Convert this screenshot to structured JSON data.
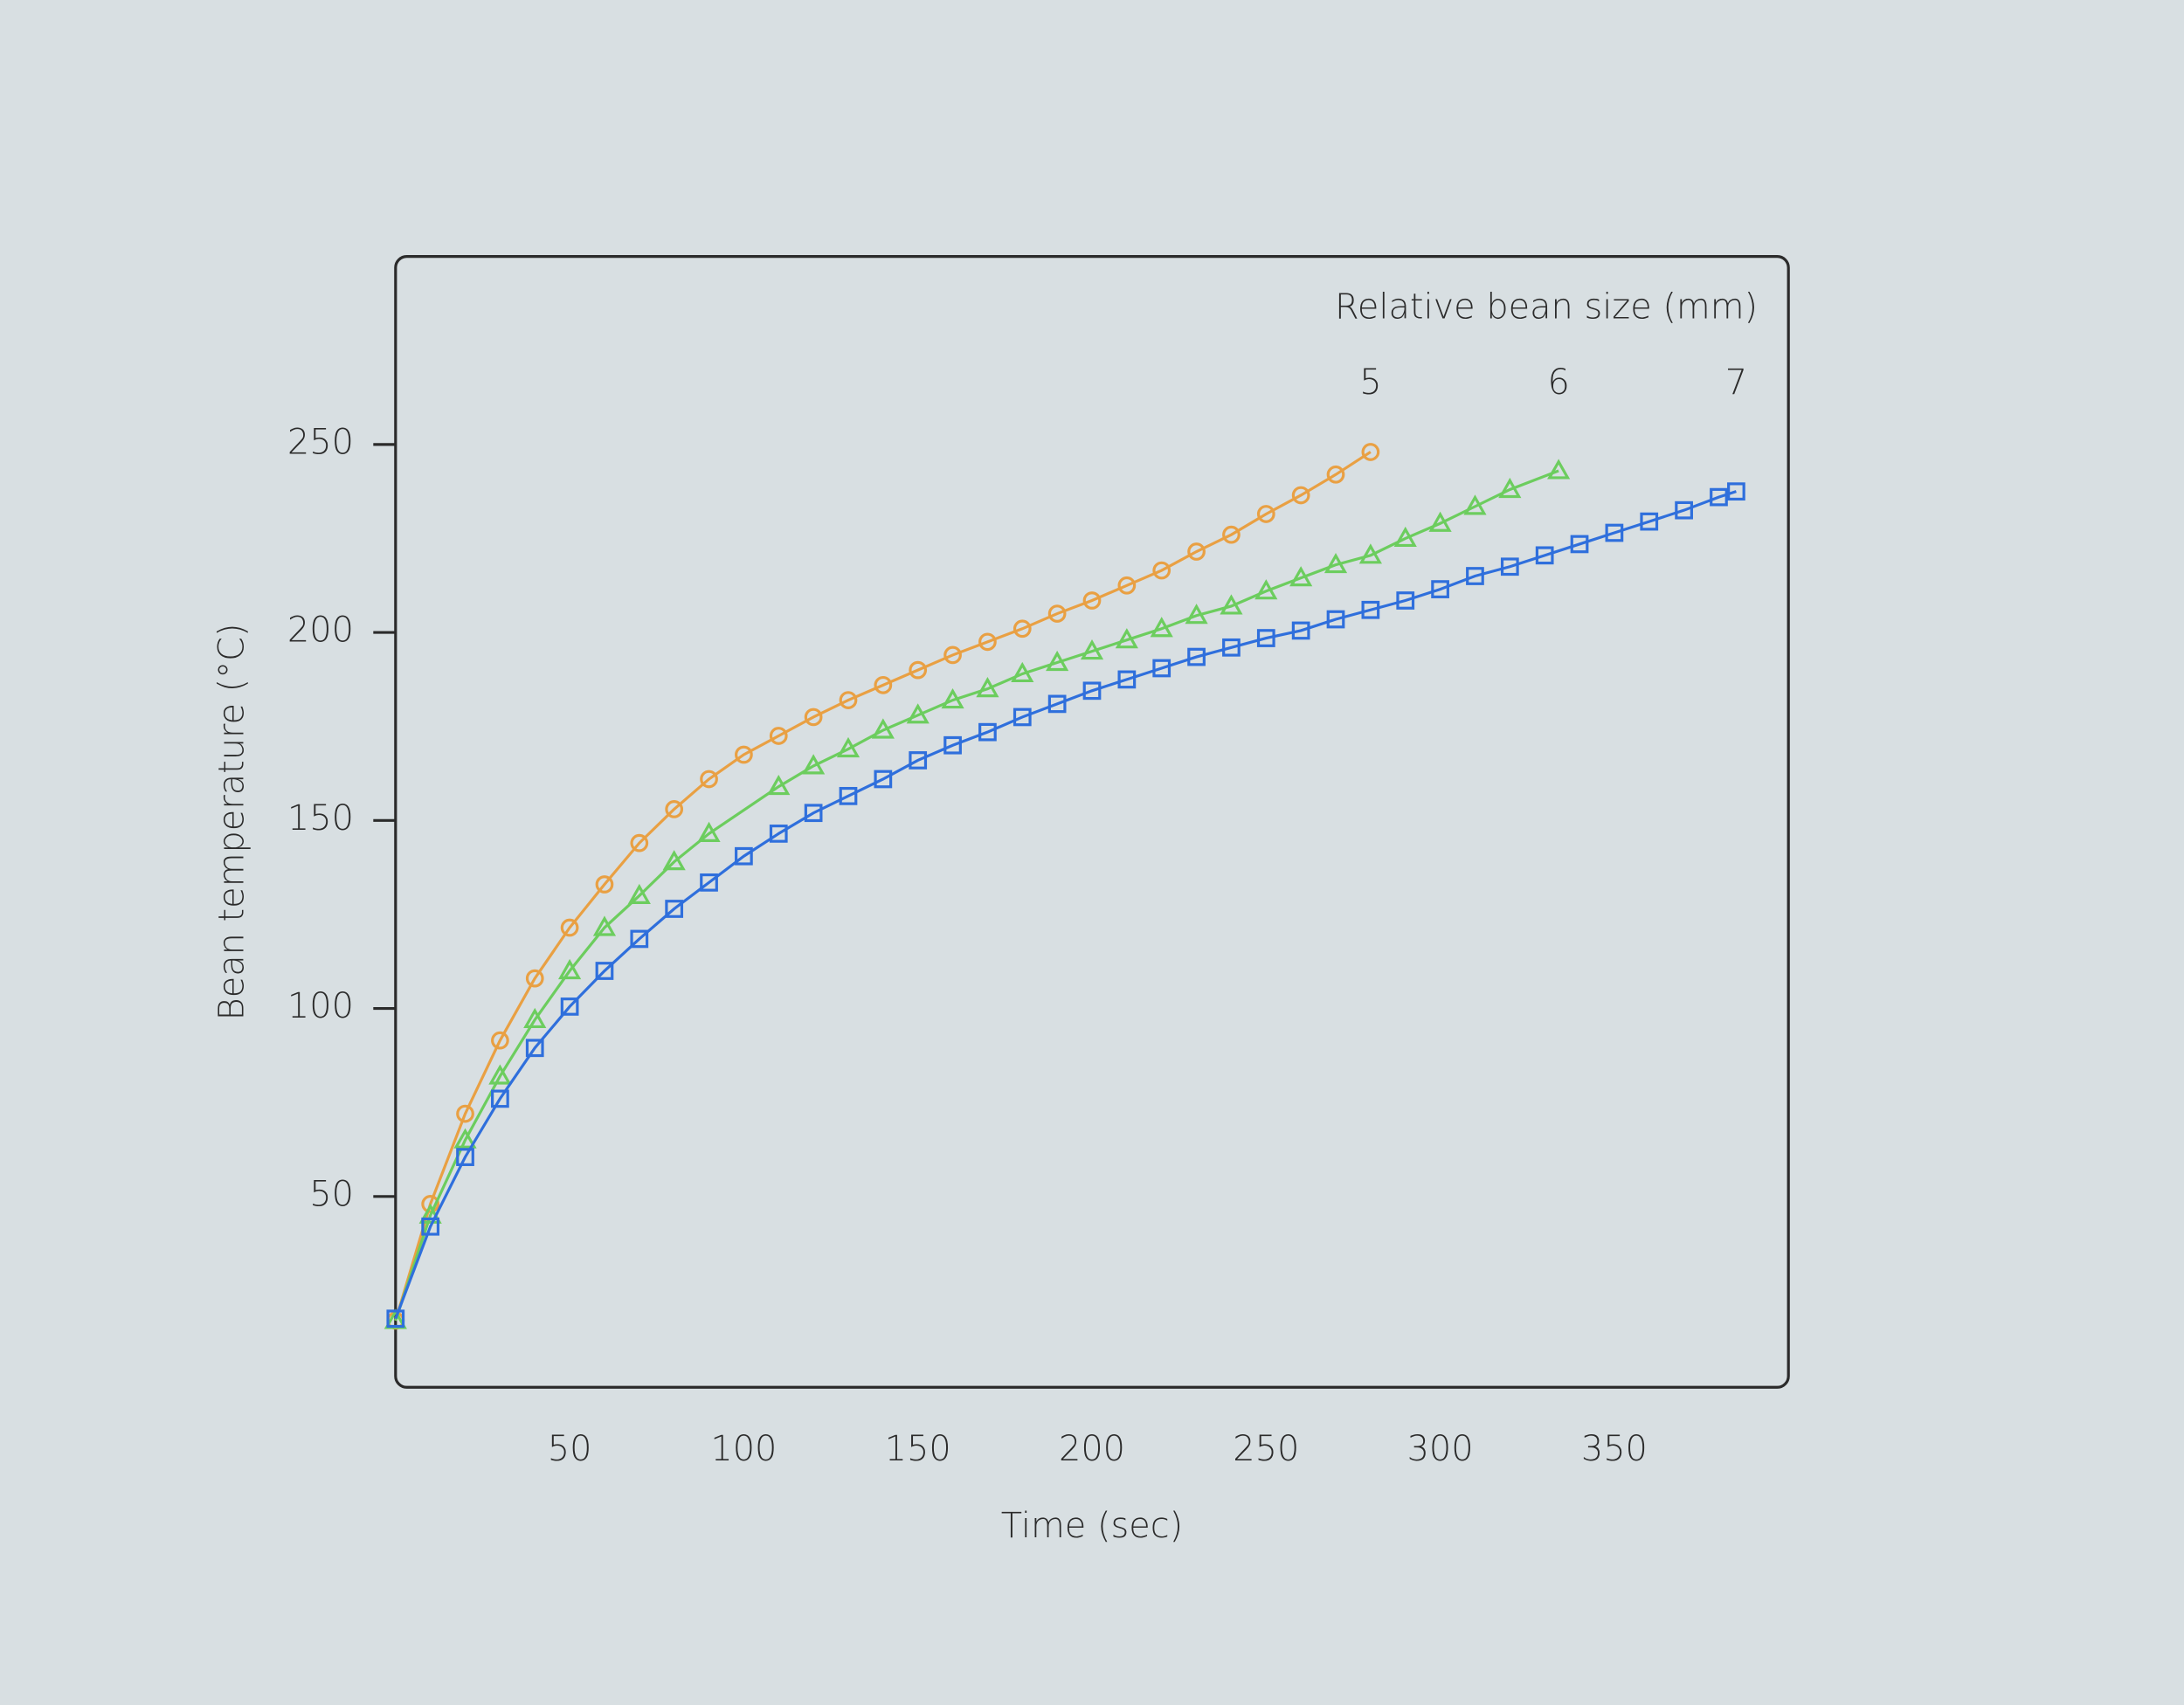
{
  "chart_data": {
    "type": "line",
    "x_label": "Time (sec)",
    "y_label": "Bean temperature (°C)",
    "legend_title": "Relative bean size (mm)",
    "xlim": [
      0,
      400
    ],
    "xticks": [
      50,
      100,
      150,
      200,
      250,
      300,
      350
    ],
    "ylim": [
      0,
      300
    ],
    "yticks": [
      50,
      100,
      150,
      200,
      250
    ],
    "series": [
      {
        "name": "5",
        "color": "#e9a043",
        "marker": "circle",
        "x": [
          0,
          10,
          20,
          30,
          40,
          50,
          60,
          70,
          80,
          90,
          100,
          110,
          120,
          130,
          140,
          150,
          160,
          170,
          180,
          190,
          200,
          210,
          220,
          230,
          240,
          250,
          260,
          270,
          280
        ],
        "values": [
          17,
          48,
          72,
          91.5,
          108,
          121.5,
          133,
          144,
          153,
          161,
          167.5,
          172.5,
          177.5,
          182,
          186,
          190,
          194,
          197.5,
          201,
          205,
          208.5,
          212.5,
          216.5,
          221.5,
          226,
          231.5,
          236.5,
          242,
          248
        ]
      },
      {
        "name": "6",
        "color": "#6ccd5e",
        "marker": "triangle",
        "x": [
          0,
          10,
          20,
          30,
          40,
          50,
          60,
          70,
          80,
          90,
          110,
          120,
          130,
          140,
          150,
          160,
          170,
          180,
          190,
          200,
          210,
          220,
          230,
          240,
          250,
          260,
          270,
          280,
          290,
          300,
          310,
          320,
          334
        ],
        "values": [
          17,
          45,
          65,
          82,
          97,
          110,
          121.5,
          130,
          139,
          146.5,
          159,
          164.5,
          169,
          174,
          178,
          182,
          185,
          189,
          192,
          195,
          198,
          201,
          204.5,
          207,
          211,
          214.5,
          218,
          220.5,
          225,
          229,
          233.5,
          238,
          243
        ]
      },
      {
        "name": "7",
        "color": "#2f6fdc",
        "marker": "square",
        "x": [
          0,
          10,
          20,
          30,
          40,
          50,
          60,
          70,
          80,
          90,
          100,
          110,
          120,
          130,
          140,
          150,
          160,
          170,
          180,
          190,
          200,
          210,
          220,
          230,
          240,
          250,
          260,
          270,
          280,
          290,
          300,
          310,
          320,
          330,
          340,
          350,
          360,
          370,
          380,
          385
        ],
        "values": [
          17.5,
          42,
          60.5,
          76,
          89.5,
          100.5,
          110,
          118.5,
          126.5,
          133.5,
          140.5,
          146.5,
          152,
          156.5,
          161,
          166,
          170,
          173.5,
          177.5,
          181,
          184.5,
          187.5,
          190.5,
          193.5,
          196,
          198.5,
          200.5,
          203.5,
          206,
          208.5,
          211.5,
          215,
          217.5,
          220.5,
          223.5,
          226.5,
          229.5,
          232.5,
          236,
          237.5
        ]
      }
    ]
  }
}
